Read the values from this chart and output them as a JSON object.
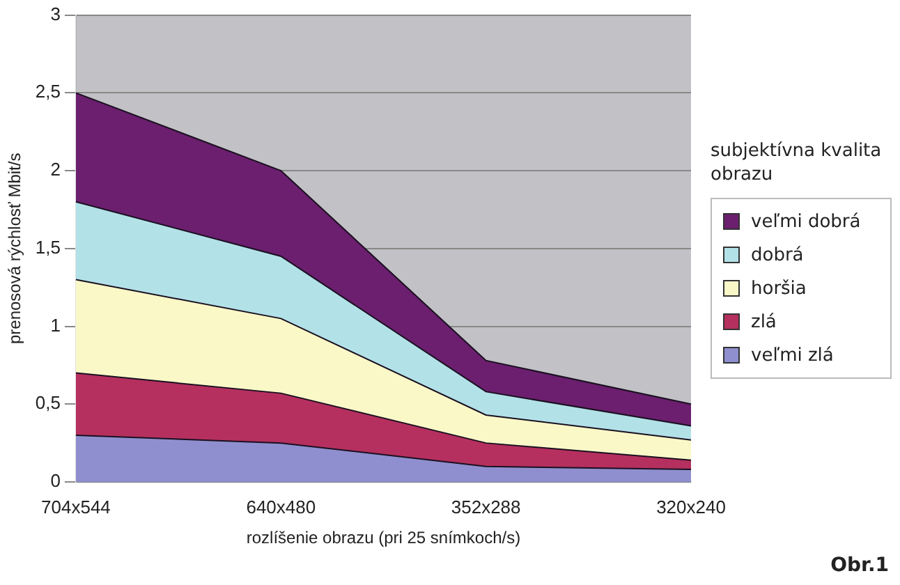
{
  "chart_data": {
    "type": "area",
    "stacked": true,
    "xlabel": "rozlíšenie obrazu (pri 25 snímkoch/s)",
    "ylabel": "prenosová rýchlosť Mbit/s",
    "legend_title": "subjektívna kvalita obrazu",
    "legend": "right",
    "grid": "y",
    "categories": [
      "704x544",
      "640x480",
      "352x288",
      "320x240"
    ],
    "ylim": [
      0,
      3
    ],
    "yticks": [
      0,
      {
        "value": 0.5,
        "label": "0,5"
      },
      1,
      {
        "value": 1.5,
        "label": "1,5"
      },
      2,
      {
        "value": 2.5,
        "label": "2,5"
      },
      3
    ],
    "series": [
      {
        "name": "veľmi zlá",
        "color": "#8f8fcf",
        "values": [
          0.3,
          0.25,
          0.1,
          0.08
        ]
      },
      {
        "name": "zlá",
        "color": "#b5305f",
        "values": [
          0.4,
          0.32,
          0.15,
          0.06
        ]
      },
      {
        "name": "horšia",
        "color": "#fbf8c8",
        "values": [
          0.6,
          0.48,
          0.18,
          0.13
        ]
      },
      {
        "name": "dobrá",
        "color": "#b3e1e8",
        "values": [
          0.5,
          0.4,
          0.15,
          0.09
        ]
      },
      {
        "name": "veľmi dobrá",
        "color": "#6b1f6e",
        "values": [
          0.7,
          0.55,
          0.2,
          0.14
        ]
      }
    ],
    "annotations": [
      "Obr.1"
    ]
  }
}
